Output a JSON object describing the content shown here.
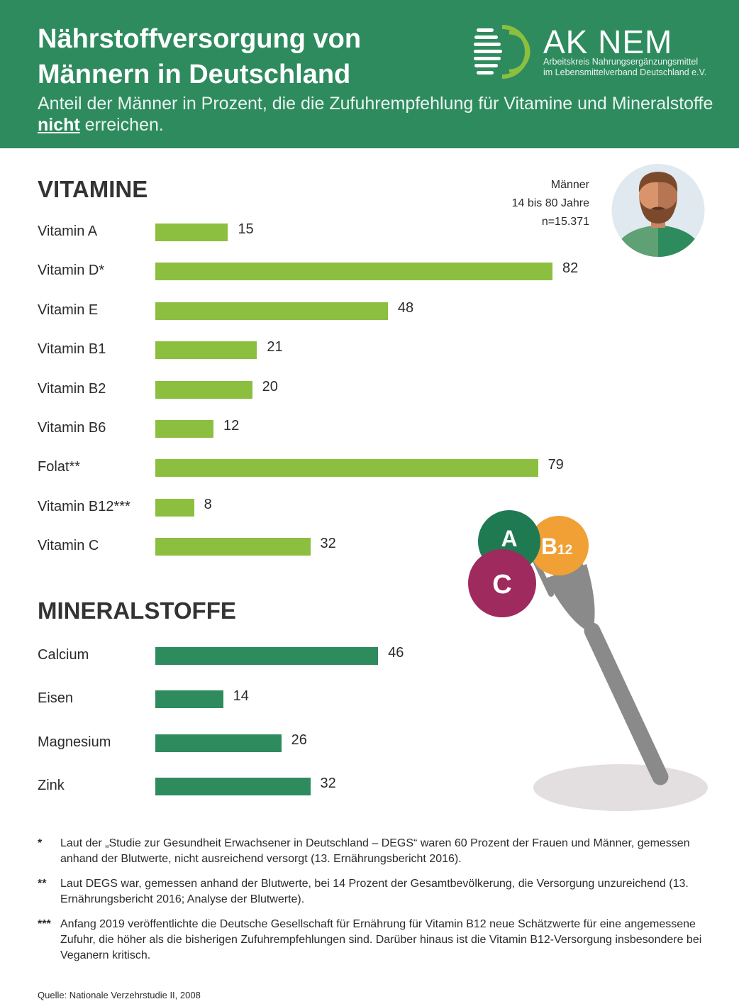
{
  "header": {
    "title_line1": "Nährstoffversorgung von",
    "title_line2": "Männern in Deutschland",
    "subtitle_pre": "Anteil der Männer in Prozent, die die Zufuhrempfehlung für Vitamine und Mineralstoffe",
    "subtitle_emph": "nicht",
    "subtitle_post": " erreichen."
  },
  "logo": {
    "name": "AK NEM",
    "line1": "Arbeitskreis Nahrungsergänzungsmittel",
    "line2": "im Lebensmittelverband Deutschland e.V."
  },
  "sample": {
    "line1": "Männer",
    "line2": "14 bis 80 Jahre",
    "line3": "n=15.371"
  },
  "illustration": {
    "badge_a": "A",
    "badge_b12": "B",
    "badge_b12_sub": "12",
    "badge_c": "C"
  },
  "colors": {
    "header": "#2e8b5e",
    "vitamin_bar": "#8cbf3f",
    "mineral_bar": "#2e8b5e"
  },
  "chart_data": [
    {
      "type": "bar",
      "orientation": "horizontal",
      "title": "VITAMINE",
      "color": "#8cbf3f",
      "categories": [
        "Vitamin A",
        "Vitamin D*",
        "Vitamin E",
        "Vitamin B1",
        "Vitamin B2",
        "Vitamin B6",
        "Folat**",
        "Vitamin B12***",
        "Vitamin C"
      ],
      "values": [
        15,
        82,
        48,
        21,
        20,
        12,
        79,
        8,
        32
      ],
      "xlim": [
        0,
        100
      ]
    },
    {
      "type": "bar",
      "orientation": "horizontal",
      "title": "MINERALSTOFFE",
      "color": "#2e8b5e",
      "categories": [
        "Calcium",
        "Eisen",
        "Magnesium",
        "Zink"
      ],
      "values": [
        46,
        14,
        26,
        32
      ],
      "xlim": [
        0,
        100
      ]
    }
  ],
  "footnotes": [
    {
      "mark": "*",
      "text": "Laut der „Studie zur Gesundheit Erwachsener in Deutschland – DEGS“ waren 60 Prozent der Frauen und Männer, gemessen anhand der Blutwerte, nicht ausreichend versorgt (13. Ernährungsbericht 2016)."
    },
    {
      "mark": "**",
      "text": "Laut DEGS war, gemessen anhand der Blutwerte, bei 14 Prozent der Gesamtbevölkerung, die Versorgung unzureichend (13. Ernährungsbericht 2016; Analyse der Blutwerte)."
    },
    {
      "mark": "***",
      "text": "Anfang 2019 veröffentlichte die Deutsche Gesellschaft für Ernährung für Vitamin B12 neue Schätzwerte für eine angemessene Zufuhr, die höher als die bisherigen Zufuhrempfehlungen sind. Darüber hinaus ist die Vitamin B12-Versorgung insbesondere bei Veganern kritisch."
    }
  ],
  "source": "Quelle: Nationale Verzehrstudie II, 2008"
}
